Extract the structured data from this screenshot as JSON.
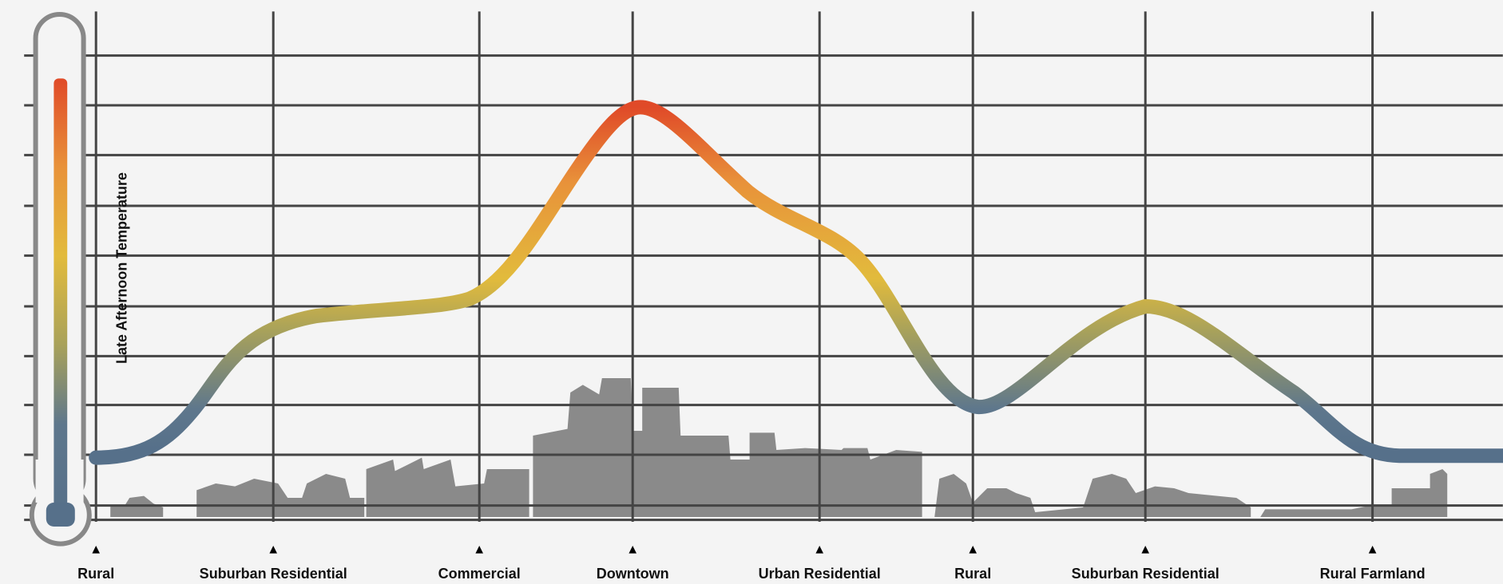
{
  "y_axis_label": "Late Afternoon Temperature",
  "zones": [
    "Rural",
    "Suburban Residential",
    "Commercial",
    "Downtown",
    "Urban Residential",
    "Rural",
    "Suburban Residential",
    "Rural Farmland"
  ]
}
